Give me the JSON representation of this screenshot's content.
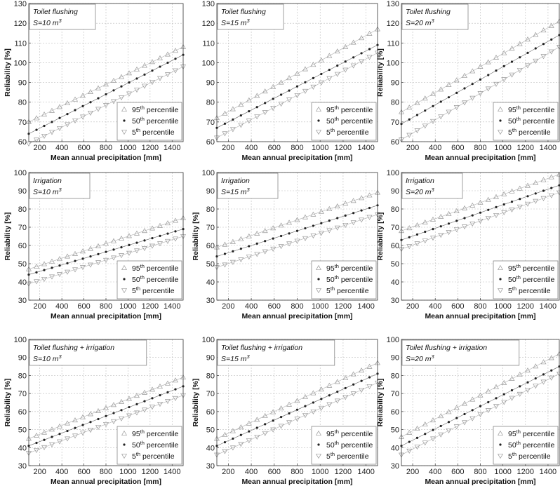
{
  "chart_data": [
    {
      "type": "scatter",
      "row": 0,
      "col": 0,
      "annotation": {
        "title": "Toilet flushing",
        "s_label": "S=10 m",
        "s_sup": "3"
      },
      "xlabel": "Mean annual precipitation [mm]",
      "ylabel": "Reliability [%]",
      "xlim": [
        100,
        1500
      ],
      "ylim": [
        60,
        130
      ],
      "xticks": [
        200,
        400,
        600,
        800,
        1000,
        1200,
        1400
      ],
      "yticks": [
        60,
        70,
        80,
        90,
        100,
        110,
        120,
        130
      ],
      "legend_position": "bottom-right",
      "grid": true,
      "series": [
        {
          "name": "95th percentile",
          "marker": "triangle-up",
          "x": [
            100,
            1500
          ],
          "y": [
            70,
            108
          ]
        },
        {
          "name": "50th percentile",
          "marker": "dot",
          "x": [
            100,
            1500
          ],
          "y": [
            64,
            104
          ]
        },
        {
          "name": "5th percentile",
          "marker": "triangle-down",
          "x": [
            100,
            1500
          ],
          "y": [
            59,
            98
          ]
        }
      ]
    },
    {
      "type": "scatter",
      "row": 0,
      "col": 1,
      "annotation": {
        "title": "Toilet flushing",
        "s_label": "S=15 m",
        "s_sup": "3"
      },
      "xlabel": "Mean annual precipitation [mm]",
      "ylabel": "",
      "xlim": [
        100,
        1500
      ],
      "ylim": [
        60,
        130
      ],
      "xticks": [
        200,
        400,
        600,
        800,
        1000,
        1200,
        1400
      ],
      "yticks": [
        60,
        70,
        80,
        90,
        100,
        110,
        120,
        130
      ],
      "legend_position": "bottom-right",
      "grid": true,
      "series": [
        {
          "name": "95th percentile",
          "marker": "triangle-up",
          "x": [
            100,
            1500
          ],
          "y": [
            72,
            117
          ]
        },
        {
          "name": "50th percentile",
          "marker": "dot",
          "x": [
            100,
            1500
          ],
          "y": [
            67,
            109
          ]
        },
        {
          "name": "5th percentile",
          "marker": "triangle-down",
          "x": [
            100,
            1500
          ],
          "y": [
            62,
            105
          ]
        }
      ]
    },
    {
      "type": "scatter",
      "row": 0,
      "col": 2,
      "annotation": {
        "title": "Toilet flushing",
        "s_label": "S=20 m",
        "s_sup": "3"
      },
      "xlabel": "Mean annual precipitation [mm]",
      "ylabel": "Reliability [%]",
      "xlim": [
        100,
        1500
      ],
      "ylim": [
        60,
        130
      ],
      "xticks": [
        200,
        400,
        600,
        800,
        1000,
        1200,
        1400
      ],
      "yticks": [
        60,
        70,
        80,
        90,
        100,
        110,
        120,
        130
      ],
      "legend_position": "bottom-right",
      "grid": true,
      "series": [
        {
          "name": "95th percentile",
          "marker": "triangle-up",
          "x": [
            100,
            1500
          ],
          "y": [
            75,
            121
          ]
        },
        {
          "name": "50th percentile",
          "marker": "dot",
          "x": [
            100,
            1500
          ],
          "y": [
            69,
            114
          ]
        },
        {
          "name": "5th percentile",
          "marker": "triangle-down",
          "x": [
            100,
            1500
          ],
          "y": [
            61,
            108
          ]
        }
      ]
    },
    {
      "type": "scatter",
      "row": 1,
      "col": 0,
      "annotation": {
        "title": "Irrigation",
        "s_label": "S=10 m",
        "s_sup": "3"
      },
      "xlabel": "Mean annual precipitation [mm]",
      "ylabel": "Reliability [%]",
      "xlim": [
        100,
        1500
      ],
      "ylim": [
        30,
        100
      ],
      "xticks": [
        200,
        400,
        600,
        800,
        1000,
        1200,
        1400
      ],
      "yticks": [
        30,
        40,
        50,
        60,
        70,
        80,
        90,
        100
      ],
      "legend_position": "bottom-right",
      "grid": true,
      "series": [
        {
          "name": "95th percentile",
          "marker": "triangle-up",
          "x": [
            100,
            1500
          ],
          "y": [
            47,
            75
          ]
        },
        {
          "name": "50th percentile",
          "marker": "dot",
          "x": [
            100,
            1500
          ],
          "y": [
            44,
            69
          ]
        },
        {
          "name": "5th percentile",
          "marker": "triangle-down",
          "x": [
            100,
            1500
          ],
          "y": [
            39,
            65
          ]
        }
      ]
    },
    {
      "type": "scatter",
      "row": 1,
      "col": 1,
      "annotation": {
        "title": "Irrigation",
        "s_label": "S=15 m",
        "s_sup": "3"
      },
      "xlabel": "Mean annual precipitation [mm]",
      "ylabel": "Reliability [%]",
      "xlim": [
        100,
        1500
      ],
      "ylim": [
        30,
        100
      ],
      "xticks": [
        200,
        400,
        600,
        800,
        1000,
        1200,
        1400
      ],
      "yticks": [
        30,
        40,
        50,
        60,
        70,
        80,
        90,
        100
      ],
      "legend_position": "bottom-right",
      "grid": true,
      "series": [
        {
          "name": "95th percentile",
          "marker": "triangle-up",
          "x": [
            100,
            1500
          ],
          "y": [
            59,
            89
          ]
        },
        {
          "name": "50th percentile",
          "marker": "dot",
          "x": [
            100,
            1500
          ],
          "y": [
            54,
            82
          ]
        },
        {
          "name": "5th percentile",
          "marker": "triangle-down",
          "x": [
            100,
            1500
          ],
          "y": [
            48,
            77
          ]
        }
      ]
    },
    {
      "type": "scatter",
      "row": 1,
      "col": 2,
      "annotation": {
        "title": "Irrigation",
        "s_label": "S=20 m",
        "s_sup": "3"
      },
      "xlabel": "Mean annual precipitation [mm]",
      "ylabel": "Reliability [%]",
      "xlim": [
        100,
        1500
      ],
      "ylim": [
        30,
        100
      ],
      "xticks": [
        200,
        400,
        600,
        800,
        1000,
        1200,
        1400
      ],
      "yticks": [
        30,
        40,
        50,
        60,
        70,
        80,
        90,
        100
      ],
      "legend_position": "bottom-right",
      "grid": true,
      "series": [
        {
          "name": "95th percentile",
          "marker": "triangle-up",
          "x": [
            100,
            1500
          ],
          "y": [
            68,
            99
          ]
        },
        {
          "name": "50th percentile",
          "marker": "dot",
          "x": [
            100,
            1500
          ],
          "y": [
            63,
            93
          ]
        },
        {
          "name": "5th percentile",
          "marker": "triangle-down",
          "x": [
            100,
            1500
          ],
          "y": [
            58,
            89
          ]
        }
      ]
    },
    {
      "type": "scatter",
      "row": 2,
      "col": 0,
      "annotation": {
        "title": "Toilet flushing + irrigation",
        "s_label": "S=10 m",
        "s_sup": "3"
      },
      "xlabel": "Mean annual precipitation [mm]",
      "ylabel": "Reliability [%]",
      "xlim": [
        100,
        1500
      ],
      "ylim": [
        30,
        100
      ],
      "xticks": [
        200,
        400,
        600,
        800,
        1000,
        1200,
        1400
      ],
      "yticks": [
        30,
        40,
        50,
        60,
        70,
        80,
        90,
        100
      ],
      "legend_position": "bottom-right",
      "grid": true,
      "series": [
        {
          "name": "95th percentile",
          "marker": "triangle-up",
          "x": [
            100,
            1500
          ],
          "y": [
            45,
            79
          ]
        },
        {
          "name": "50th percentile",
          "marker": "dot",
          "x": [
            100,
            1500
          ],
          "y": [
            41,
            74
          ]
        },
        {
          "name": "5th percentile",
          "marker": "triangle-down",
          "x": [
            100,
            1500
          ],
          "y": [
            37,
            69
          ]
        }
      ]
    },
    {
      "type": "scatter",
      "row": 2,
      "col": 1,
      "annotation": {
        "title": "Toilet flushing + irrigation",
        "s_label": "S=15 m",
        "s_sup": "3"
      },
      "xlabel": "Mean annual precipitation [mm]",
      "ylabel": "Reliability [%]",
      "xlim": [
        100,
        1500
      ],
      "ylim": [
        30,
        100
      ],
      "xticks": [
        200,
        400,
        600,
        800,
        1000,
        1200,
        1400
      ],
      "yticks": [
        30,
        40,
        50,
        60,
        70,
        80,
        90,
        100
      ],
      "legend_position": "bottom-right",
      "grid": true,
      "series": [
        {
          "name": "95th percentile",
          "marker": "triangle-up",
          "x": [
            100,
            1500
          ],
          "y": [
            45,
            87
          ]
        },
        {
          "name": "50th percentile",
          "marker": "dot",
          "x": [
            100,
            1500
          ],
          "y": [
            41,
            81
          ]
        },
        {
          "name": "5th percentile",
          "marker": "triangle-down",
          "x": [
            100,
            1500
          ],
          "y": [
            36,
            76
          ]
        }
      ]
    },
    {
      "type": "scatter",
      "row": 2,
      "col": 2,
      "annotation": {
        "title": "Toilet flushing + irrigation",
        "s_label": "S=20 m",
        "s_sup": "3"
      },
      "xlabel": "Mean annual precipitation [mm]",
      "ylabel": "Reliability [%]",
      "xlim": [
        100,
        1500
      ],
      "ylim": [
        30,
        100
      ],
      "xticks": [
        200,
        400,
        600,
        800,
        1000,
        1200,
        1400
      ],
      "yticks": [
        30,
        40,
        50,
        60,
        70,
        80,
        90,
        100
      ],
      "legend_position": "bottom-right",
      "grid": true,
      "series": [
        {
          "name": "95th percentile",
          "marker": "triangle-up",
          "x": [
            100,
            1500
          ],
          "y": [
            46,
            92
          ]
        },
        {
          "name": "50th percentile",
          "marker": "dot",
          "x": [
            100,
            1500
          ],
          "y": [
            41,
            85
          ]
        },
        {
          "name": "5th percentile",
          "marker": "triangle-down",
          "x": [
            100,
            1500
          ],
          "y": [
            36,
            81
          ]
        }
      ]
    }
  ]
}
